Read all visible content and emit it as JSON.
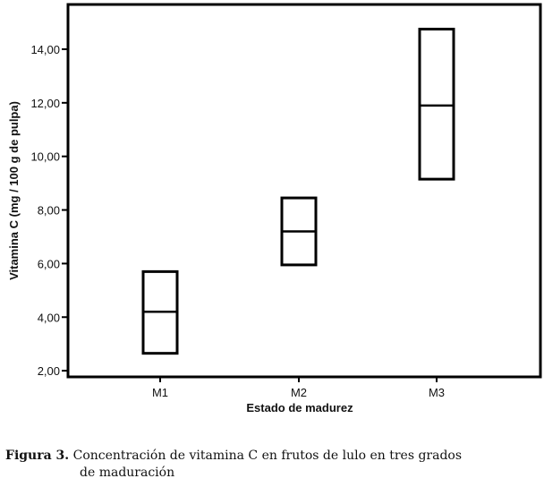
{
  "chart_data": {
    "type": "box",
    "categories": [
      "M1",
      "M2",
      "M3"
    ],
    "boxes": [
      {
        "category": "M1",
        "low": 2.65,
        "mid": 4.2,
        "high": 5.7
      },
      {
        "category": "M2",
        "low": 5.95,
        "mid": 7.2,
        "high": 8.45
      },
      {
        "category": "M3",
        "low": 9.15,
        "mid": 11.9,
        "high": 14.75
      }
    ],
    "xlabel": "Estado de madurez",
    "ylabel": "Vitamina C (mg / 100 g de pulpa)",
    "ylim": [
      1.77,
      15.67
    ],
    "yticks": [
      2,
      4,
      6,
      8,
      10,
      12,
      14
    ],
    "ytick_labels": [
      "2,00",
      "4,00",
      "6,00",
      "8,00",
      "10,00",
      "12,00",
      "14,00"
    ],
    "grid": false,
    "colors": {
      "stroke": "#000000",
      "fill": "#ffffff"
    }
  },
  "caption": {
    "label": "Figura 3.",
    "text_line1": "Concentración de vitamina C en frutos de lulo en tres grados",
    "text_line2": "de maduración"
  }
}
